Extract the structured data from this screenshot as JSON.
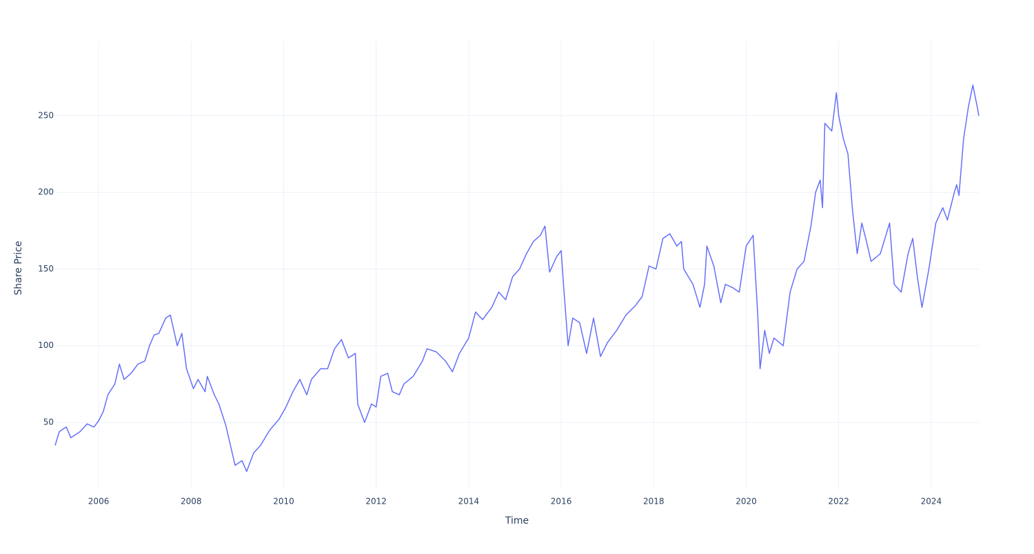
{
  "chart_data": {
    "type": "line",
    "x_label": "Time",
    "y_label": "Share Price",
    "xlim": [
      2005.06,
      2025.03
    ],
    "xticks": [
      2006,
      2008,
      2010,
      2012,
      2014,
      2016,
      2018,
      2020,
      2022,
      2024
    ],
    "ylim": [
      6.4,
      298.5
    ],
    "yticks": [
      50,
      100,
      150,
      200,
      250
    ],
    "grid": true,
    "series": [
      {
        "name": "Share Price",
        "color": "#636efa",
        "x": [
          2005.06,
          2005.15,
          2005.3,
          2005.4,
          2005.6,
          2005.75,
          2005.9,
          2006.0,
          2006.1,
          2006.2,
          2006.35,
          2006.45,
          2006.55,
          2006.7,
          2006.85,
          2007.0,
          2007.1,
          2007.2,
          2007.3,
          2007.45,
          2007.55,
          2007.7,
          2007.8,
          2007.9,
          2008.05,
          2008.15,
          2008.3,
          2008.35,
          2008.5,
          2008.6,
          2008.75,
          2008.85,
          2008.95,
          2009.1,
          2009.2,
          2009.35,
          2009.5,
          2009.7,
          2009.9,
          2010.05,
          2010.2,
          2010.35,
          2010.5,
          2010.6,
          2010.8,
          2010.95,
          2011.1,
          2011.25,
          2011.4,
          2011.55,
          2011.6,
          2011.75,
          2011.9,
          2012.0,
          2012.1,
          2012.25,
          2012.35,
          2012.5,
          2012.6,
          2012.8,
          2013.0,
          2013.1,
          2013.3,
          2013.5,
          2013.65,
          2013.8,
          2014.0,
          2014.15,
          2014.3,
          2014.5,
          2014.65,
          2014.8,
          2014.95,
          2015.1,
          2015.25,
          2015.4,
          2015.55,
          2015.65,
          2015.75,
          2015.9,
          2016.0,
          2016.05,
          2016.15,
          2016.25,
          2016.4,
          2016.55,
          2016.7,
          2016.85,
          2017.0,
          2017.2,
          2017.4,
          2017.6,
          2017.75,
          2017.9,
          2018.05,
          2018.2,
          2018.35,
          2018.5,
          2018.6,
          2018.65,
          2018.85,
          2019.0,
          2019.1,
          2019.15,
          2019.3,
          2019.45,
          2019.55,
          2019.7,
          2019.85,
          2020.0,
          2020.15,
          2020.25,
          2020.3,
          2020.4,
          2020.5,
          2020.6,
          2020.8,
          2020.95,
          2021.1,
          2021.25,
          2021.4,
          2021.5,
          2021.6,
          2021.65,
          2021.7,
          2021.85,
          2021.95,
          2022.0,
          2022.1,
          2022.2,
          2022.3,
          2022.4,
          2022.5,
          2022.6,
          2022.7,
          2022.9,
          2023.0,
          2023.1,
          2023.2,
          2023.35,
          2023.5,
          2023.6,
          2023.7,
          2023.8,
          2023.95,
          2024.1,
          2024.25,
          2024.35,
          2024.5,
          2024.55,
          2024.6,
          2024.7,
          2024.8,
          2024.9,
          2025.0,
          2025.03
        ],
        "values": [
          35,
          44,
          47,
          40,
          44,
          49,
          47,
          51,
          57,
          68,
          75,
          88,
          78,
          82,
          88,
          90,
          100,
          107,
          108,
          118,
          120,
          100,
          108,
          85,
          72,
          78,
          70,
          80,
          68,
          62,
          48,
          35,
          22,
          25,
          18,
          30,
          35,
          45,
          52,
          60,
          70,
          78,
          68,
          78,
          85,
          85,
          98,
          104,
          92,
          95,
          62,
          50,
          62,
          60,
          80,
          82,
          70,
          68,
          75,
          80,
          90,
          98,
          96,
          90,
          83,
          95,
          105,
          122,
          117,
          125,
          135,
          130,
          145,
          150,
          160,
          168,
          172,
          178,
          148,
          158,
          162,
          140,
          100,
          118,
          115,
          95,
          118,
          93,
          102,
          110,
          120,
          126,
          132,
          152,
          150,
          170,
          173,
          165,
          168,
          150,
          140,
          125,
          140,
          165,
          152,
          128,
          140,
          138,
          135,
          165,
          172,
          120,
          85,
          110,
          95,
          105,
          100,
          135,
          150,
          155,
          178,
          200,
          208,
          190,
          245,
          240,
          265,
          250,
          235,
          225,
          188,
          160,
          180,
          168,
          155,
          160,
          170,
          180,
          140,
          135,
          160,
          170,
          145,
          125,
          150,
          180,
          190,
          182,
          200,
          205,
          198,
          235,
          255,
          270,
          255,
          250
        ]
      }
    ]
  }
}
